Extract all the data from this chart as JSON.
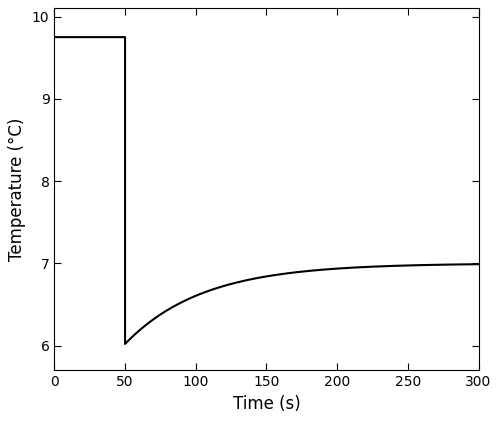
{
  "title": "",
  "xlabel": "Time (s)",
  "ylabel": "Temperature (°C)",
  "xlim": [
    0,
    300
  ],
  "ylim": [
    5.7,
    10.1
  ],
  "yticks": [
    6,
    7,
    8,
    9,
    10
  ],
  "xticks": [
    0,
    50,
    100,
    150,
    200,
    250,
    300
  ],
  "initial_temp": 9.75,
  "step_time": 50,
  "drop_temp": 6.02,
  "final_temp": 7.0,
  "time_constant": 55,
  "line_color": "#000000",
  "line_width": 1.5,
  "bg_color": "#ffffff",
  "fig_width": 5.0,
  "fig_height": 4.21,
  "dpi": 100
}
